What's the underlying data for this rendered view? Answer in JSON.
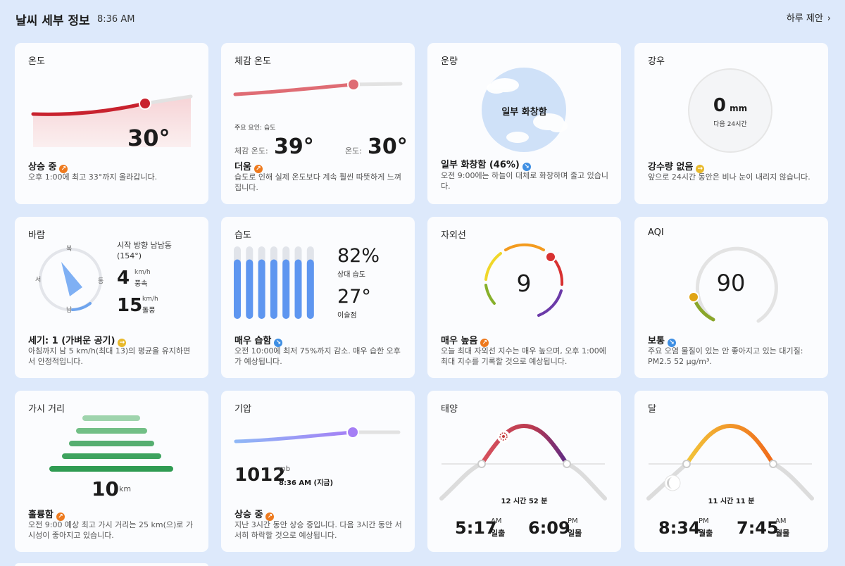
{
  "header": {
    "title": "날씨 세부 정보",
    "time": "8:36 AM",
    "suggest_label": "하루 제안",
    "suggest_chevron": "›"
  },
  "temperature": {
    "title": "온도",
    "value": "30°",
    "stat": "상승 중",
    "trend": "up",
    "desc": "오후 1:00에 최고 33°까지 올라갑니다."
  },
  "feels_like": {
    "title": "체감 온도",
    "factor": "주요 요인: 습도",
    "feels_label": "체감 온도:",
    "feels_value": "39°",
    "temp_label": "온도:",
    "temp_value": "30°",
    "stat": "더움",
    "trend": "up",
    "desc": "습도로 인해 실제 온도보다 계속 훨씬 따뜻하게 느껴집니다."
  },
  "cloud": {
    "title": "운량",
    "circle_label": "일부 화창함",
    "stat": "일부 화창함 (46%)",
    "trend": "down",
    "percent": 46,
    "desc": "오전 9:00에는 하늘이 대체로 화창하며 줄고 있습니다."
  },
  "precip": {
    "title": "강우",
    "value": "0",
    "unit": "mm",
    "sub": "다음 24시간",
    "stat": "강수량 없음",
    "trend": "flat",
    "desc": "앞으로 24시간 동안은 비나 눈이 내리지 않습니다."
  },
  "wind": {
    "title": "바람",
    "start_dir": "시작 방향 남남동 (154°)",
    "compass": {
      "n": "북",
      "e": "동",
      "s": "남",
      "w": "서"
    },
    "speed": "4",
    "speed_unit": "km/h",
    "speed_label": "풍속",
    "gust": "15",
    "gust_unit": "km/h",
    "gust_label": "돌풍",
    "direction_deg": 154,
    "stat": "세기: 1 (가벼운 공기)",
    "trend": "flat",
    "desc": "아침까지 남 5 km/h(최대 13)의 평균을 유지하면서 안정적입니다."
  },
  "humidity": {
    "title": "습도",
    "value": "82%",
    "value_label": "상대 습도",
    "dew": "27°",
    "dew_label": "이슬점",
    "bar_levels": [
      0.82,
      0.82,
      0.82,
      0.82,
      0.82,
      0.82,
      0.82
    ],
    "stat": "매우 습함",
    "trend": "down",
    "desc": "오전 10:00에 최저 75%까지 감소. 매우 습한 오후가 예상됩니다."
  },
  "uv": {
    "title": "자외선",
    "value": "9",
    "stat": "매우 높음",
    "trend": "up",
    "desc": "오늘 최대 자외선 지수는 매우 높으며, 오후 1:00에 최대 지수를 기록할 것으로 예상됩니다."
  },
  "aqi": {
    "title": "AQI",
    "value": "90",
    "stat": "보통",
    "trend": "down",
    "desc": "주요 오염 물질이 있는 안 좋아지고 있는 대기질: PM2.5 52 μg/m³."
  },
  "visibility": {
    "title": "가시 거리",
    "value": "10",
    "unit": "km",
    "stat": "훌륭함",
    "trend": "up",
    "desc": "오전 9:00 예상 최고 가시 거리는 25 km(으)로 가시성이 좋아지고 있습니다."
  },
  "pressure": {
    "title": "기압",
    "value": "1012",
    "unit": "mb",
    "time": "8:36 AM (지금)",
    "stat": "상승 중",
    "trend": "up",
    "desc": "지난 3시간 동안 상승 중입니다. 다음 3시간 동안 서서히 하락할 것으로 예상됩니다."
  },
  "sun": {
    "title": "태양",
    "duration": "12 시간 52 분",
    "rise_time": "5:17",
    "rise_ampm": "AM",
    "rise_label": "일출",
    "set_time": "6:09",
    "set_ampm": "PM",
    "set_label": "일몰"
  },
  "moon": {
    "title": "달",
    "duration": "11 시간 11 분",
    "rise_time": "8:34",
    "rise_ampm": "PM",
    "rise_label": "월출",
    "set_time": "7:45",
    "set_ampm": "AM",
    "set_label": "월몰"
  },
  "colors": {
    "temp_line": "#c8222e",
    "feels_line": "#df6c74",
    "cloud_fill": "#cfe1f8",
    "humidity_bar": "#5e96f0",
    "pressure_line": "#a57ef5",
    "visibility_bar": "#2f9b52",
    "sun_arc": "#b9394f",
    "moon_arc": "#f2a21a",
    "aqi_dot": "#e0a414",
    "uv_dot": "#d83131"
  }
}
